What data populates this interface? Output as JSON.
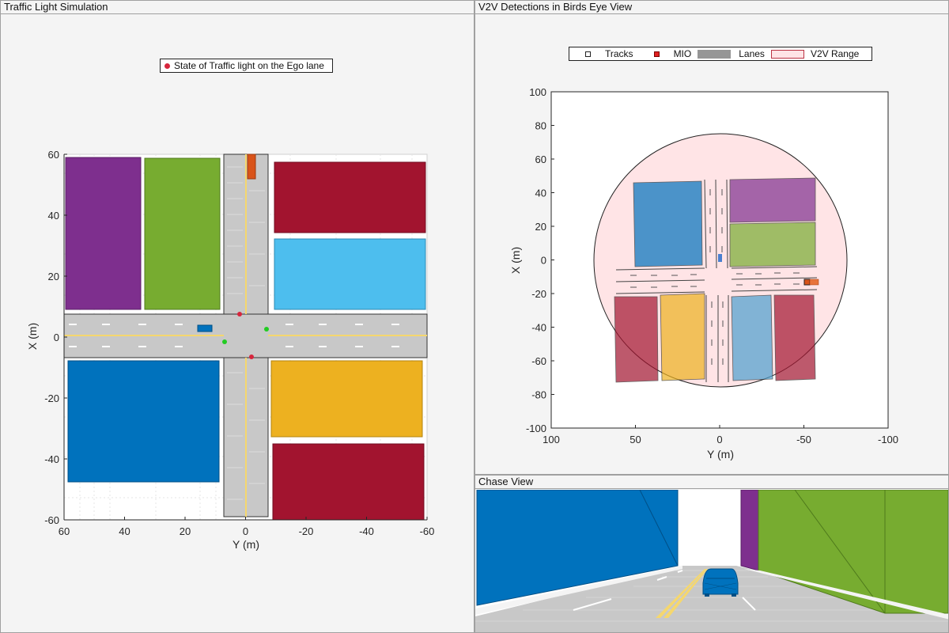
{
  "panels": {
    "left_title": "Traffic Light Simulation",
    "right_title": "V2V Detections in Birds Eye View",
    "chase_title": "Chase View"
  },
  "left_plot": {
    "legend_label": "State of Traffic light on the Ego lane",
    "xlabel": "Y (m)",
    "ylabel": "X (m)",
    "x_ticks": [
      "60",
      "40",
      "20",
      "0",
      "-20",
      "-40",
      "-60"
    ],
    "y_ticks": [
      "60",
      "40",
      "20",
      "0",
      "-20",
      "-40",
      "-60"
    ],
    "x_tick_values": [
      60,
      40,
      20,
      0,
      -20,
      -40,
      -60
    ],
    "y_tick_values": [
      60,
      40,
      20,
      0,
      -20,
      -40,
      -60
    ],
    "xlim": [
      60,
      -60
    ],
    "ylim": [
      -60,
      60
    ],
    "traffic_light_dot_color": "#d7263d",
    "green_light_color": "#22cc22"
  },
  "right_plot": {
    "legend": {
      "tracks": "Tracks",
      "mio": "MIO",
      "lanes": "Lanes",
      "v2v_range": "V2V Range"
    },
    "xlabel": "Y (m)",
    "ylabel": "X (m)",
    "x_ticks": [
      "100",
      "50",
      "0",
      "-50",
      "-100"
    ],
    "y_ticks": [
      "100",
      "80",
      "60",
      "40",
      "20",
      "0",
      "-20",
      "-40",
      "-60",
      "-80",
      "-100"
    ],
    "x_tick_values": [
      100,
      50,
      0,
      -50,
      -100
    ],
    "y_tick_values": [
      100,
      80,
      60,
      40,
      20,
      0,
      -20,
      -40,
      -60,
      -80,
      -100
    ],
    "xlim": [
      100,
      -100
    ],
    "ylim": [
      -100,
      100
    ],
    "v2v_range_color": "#ffe4e6",
    "mio_color": "#e02020"
  },
  "colors": {
    "purple": "#7e2f8e",
    "green": "#77ac30",
    "red": "#a2142f",
    "cyan": "#4dbeee",
    "blue": "#0072bd",
    "yellow": "#edb120",
    "orange": "#d95319",
    "road": "#c8c8c8",
    "lane_yellow": "#f5d76e"
  }
}
